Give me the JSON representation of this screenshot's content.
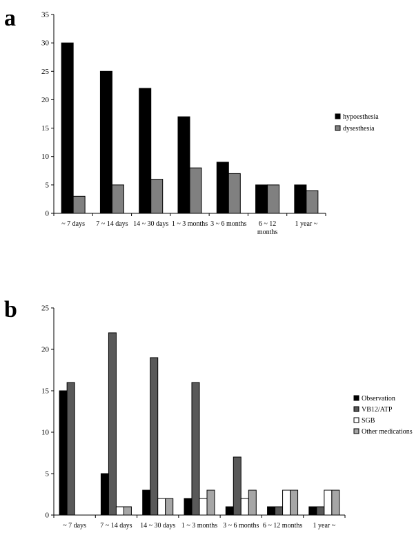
{
  "panels": {
    "a": "a",
    "b": "b"
  },
  "chart_data": [
    {
      "type": "bar",
      "panel": "a",
      "categories": [
        "~ 7 days",
        "7 ~ 14 days",
        "14 ~ 30 days",
        "1 ~ 3 months",
        "3 ~ 6 months",
        [
          "6 ~ 12",
          "months"
        ],
        "1 year ~"
      ],
      "series": [
        {
          "name": "hypoesthesia",
          "color": "#000000",
          "values": [
            30,
            25,
            22,
            17,
            9,
            5,
            5
          ]
        },
        {
          "name": "dysesthesia",
          "color": "#808080",
          "values": [
            3,
            5,
            6,
            8,
            7,
            5,
            4
          ]
        }
      ],
      "ylim": [
        0,
        35
      ],
      "yticks": [
        0,
        5,
        10,
        15,
        20,
        25,
        30,
        35
      ],
      "grid": false,
      "legend": "right"
    },
    {
      "type": "bar",
      "panel": "b",
      "categories": [
        "~ 7 days",
        "7 ~ 14 days",
        "14 ~ 30 days",
        "1 ~ 3 months",
        "3 ~ 6 months",
        "6 ~ 12 months",
        "1 year ~"
      ],
      "series": [
        {
          "name": "Observation",
          "color": "#000000",
          "values": [
            15,
            5,
            3,
            2,
            1,
            1,
            1
          ]
        },
        {
          "name": "VB12/ATP",
          "color": "#595959",
          "values": [
            16,
            22,
            19,
            16,
            7,
            1,
            1
          ]
        },
        {
          "name": "SGB",
          "color": "#ffffff",
          "values": [
            0,
            1,
            2,
            2,
            2,
            3,
            3
          ]
        },
        {
          "name": "Other medications",
          "color": "#a6a6a6",
          "values": [
            0,
            1,
            2,
            3,
            3,
            3,
            3
          ]
        }
      ],
      "ylim": [
        0,
        25
      ],
      "yticks": [
        0,
        5,
        10,
        15,
        20,
        25
      ],
      "grid": false,
      "legend": "right"
    }
  ]
}
